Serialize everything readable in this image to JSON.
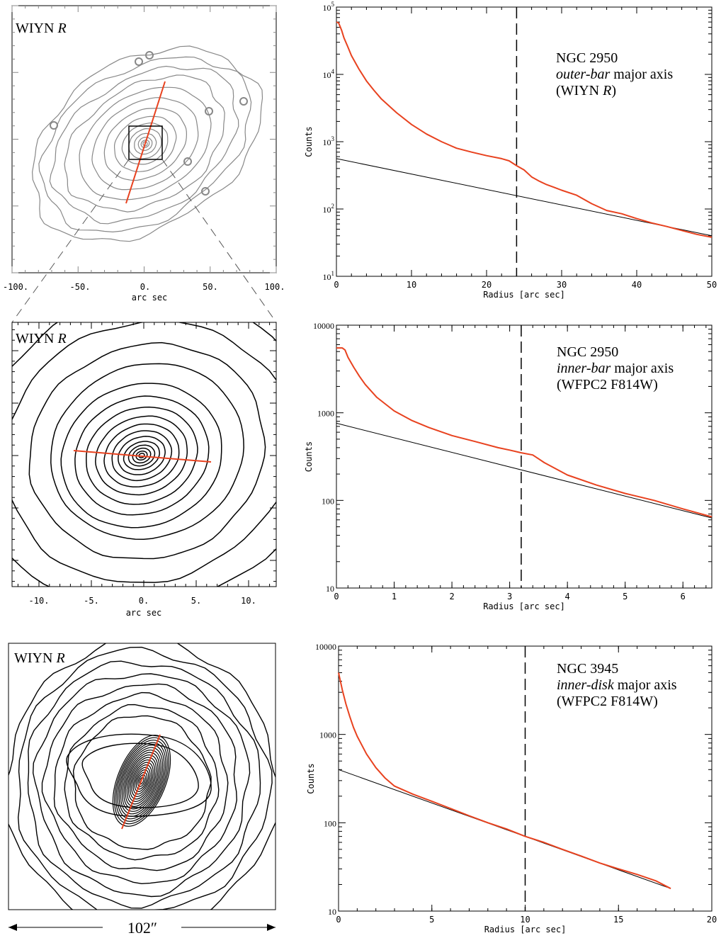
{
  "colors": {
    "profile": "#e8421f",
    "fit": "#000000",
    "contour_outer": "#888888",
    "contour": "#000000",
    "axis": "#000000"
  },
  "image_panels": [
    {
      "id": "img1",
      "label_prefix": "WIYN ",
      "label_italic": "R",
      "contour_color": "gray",
      "xlabel": "arc sec",
      "xticks": [
        "-100.",
        "-50.",
        "0.",
        "50.",
        "100."
      ],
      "scale_label": ""
    },
    {
      "id": "img2",
      "label_prefix": "WIYN ",
      "label_italic": "R",
      "contour_color": "black",
      "xlabel": "arc sec",
      "xticks": [
        "-10.",
        "-5.",
        "0.",
        "5.",
        "10."
      ],
      "scale_label": ""
    },
    {
      "id": "img3",
      "label_prefix": "WIYN ",
      "label_italic": "R",
      "contour_color": "black",
      "xlabel": "",
      "xticks": [],
      "scale_label": "102″"
    }
  ],
  "chart_data": [
    {
      "type": "line",
      "annotation": {
        "line1": "NGC 2950",
        "line2_italic": "outer-bar",
        "line2_rest": " major axis",
        "line3_prefix": "(WIYN ",
        "line3_italic": "R",
        "line3_suffix": ")"
      },
      "xlabel": "Radius [arc sec]",
      "ylabel": "Counts",
      "xlim": [
        0,
        50
      ],
      "ylim": [
        10,
        100000
      ],
      "yscale": "log",
      "xticks": [
        0,
        10,
        20,
        30,
        40,
        50
      ],
      "xtick_labels": [
        "0",
        "10",
        "20",
        "30",
        "40",
        "50"
      ],
      "yticks": [
        10,
        100,
        1000,
        10000,
        100000
      ],
      "ytick_labels": [
        {
          "base": "10",
          "exp": "1"
        },
        {
          "base": "10",
          "exp": "2"
        },
        {
          "base": "10",
          "exp": "3"
        },
        {
          "base": "10",
          "exp": "4"
        },
        {
          "base": "10",
          "exp": "5"
        }
      ],
      "dashed_line_x": 24,
      "series": [
        {
          "x": [
            0,
            0.3,
            0.7,
            1,
            1.5,
            2,
            3,
            4,
            5,
            6,
            8,
            10,
            12,
            14,
            16,
            18,
            20,
            22,
            23,
            24,
            25,
            26,
            27,
            28,
            29,
            30,
            32,
            34,
            36,
            38,
            40,
            42,
            44,
            46,
            48,
            50
          ],
          "y": [
            60000,
            58000,
            45000,
            35000,
            26000,
            19000,
            12000,
            8000,
            5800,
            4300,
            2700,
            1800,
            1300,
            1000,
            800,
            700,
            620,
            560,
            520,
            440,
            380,
            300,
            260,
            230,
            210,
            190,
            160,
            120,
            95,
            85,
            72,
            62,
            55,
            48,
            42,
            38
          ]
        },
        {
          "x": [
            0,
            50
          ],
          "y": [
            560,
            40
          ]
        }
      ]
    },
    {
      "type": "line",
      "annotation": {
        "line1": "NGC 2950",
        "line2_italic": "inner-bar",
        "line2_rest": " major axis",
        "line3_prefix": "(WFPC2 F814W)",
        "line3_italic": "",
        "line3_suffix": ""
      },
      "xlabel": "Radius [arc sec]",
      "ylabel": "Counts",
      "xlim": [
        0,
        6.5
      ],
      "ylim": [
        10,
        10000
      ],
      "yscale": "log",
      "xticks": [
        0,
        1,
        2,
        3,
        4,
        5,
        6
      ],
      "xtick_labels": [
        "0",
        "1",
        "2",
        "3",
        "4",
        "5",
        "6"
      ],
      "yticks": [
        10,
        100,
        1000,
        10000
      ],
      "ytick_labels": [
        "10",
        "100",
        "1000",
        "10000"
      ],
      "dashed_line_x": 3.2,
      "series": [
        {
          "x": [
            0,
            0.1,
            0.15,
            0.2,
            0.3,
            0.4,
            0.5,
            0.7,
            1.0,
            1.3,
            1.6,
            2.0,
            2.4,
            2.8,
            3.0,
            3.2,
            3.4,
            3.6,
            4.0,
            4.5,
            5.0,
            5.5,
            6.0,
            6.5
          ],
          "y": [
            5500,
            5500,
            5200,
            4300,
            3300,
            2600,
            2100,
            1500,
            1050,
            820,
            680,
            550,
            470,
            400,
            375,
            350,
            330,
            270,
            195,
            150,
            120,
            100,
            80,
            65
          ]
        },
        {
          "x": [
            0,
            6.5
          ],
          "y": [
            760,
            63
          ]
        }
      ]
    },
    {
      "type": "line",
      "annotation": {
        "line1": "NGC 3945",
        "line2_italic": "inner-disk",
        "line2_rest": " major axis",
        "line3_prefix": "(WFPC2 F814W)",
        "line3_italic": "",
        "line3_suffix": ""
      },
      "xlabel": "Radius [arc sec]",
      "ylabel": "Counts",
      "xlim": [
        0,
        20
      ],
      "ylim": [
        10,
        10000
      ],
      "yscale": "log",
      "xticks": [
        0,
        5,
        10,
        15,
        20
      ],
      "xtick_labels": [
        "0",
        "5",
        "10",
        "15",
        "20"
      ],
      "yticks": [
        10,
        100,
        1000,
        10000
      ],
      "ytick_labels": [
        "10",
        "100",
        "1000",
        "10000"
      ],
      "dashed_line_x": 10,
      "series": [
        {
          "x": [
            0,
            0.2,
            0.4,
            0.6,
            0.8,
            1.0,
            1.5,
            2.0,
            2.5,
            3.0,
            4,
            5,
            6,
            7,
            8,
            9,
            10,
            11,
            12,
            13,
            14,
            15,
            16,
            17,
            17.8
          ],
          "y": [
            5000,
            3200,
            2200,
            1600,
            1200,
            950,
            600,
            420,
            320,
            260,
            210,
            175,
            145,
            120,
            100,
            85,
            70,
            60,
            50,
            42,
            35,
            30,
            26,
            22,
            18
          ]
        },
        {
          "x": [
            0,
            17.8
          ],
          "y": [
            400,
            18
          ]
        }
      ]
    }
  ]
}
